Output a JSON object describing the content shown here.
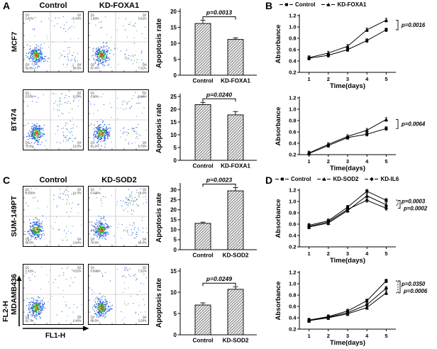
{
  "figure": {
    "panel_letters": {
      "A": "A",
      "B": "B",
      "C": "C",
      "D": "D"
    },
    "axis_labels": {
      "y": "FL2-H",
      "x": "FL1-H"
    }
  },
  "panelA": {
    "col_headers": [
      "Control",
      "KD-FOXA1"
    ],
    "row_labels": [
      "MCF7",
      "BT474"
    ]
  },
  "panelC": {
    "col_headers": [
      "Control",
      "KD-SOD2"
    ],
    "row_labels": [
      "SUM-149PT",
      "MDAMB436"
    ]
  },
  "legendB": [
    {
      "label": "Control",
      "marker": "square"
    },
    {
      "label": "KD-FOXA1",
      "marker": "triangle"
    }
  ],
  "legendD": [
    {
      "label": "Control",
      "marker": "square"
    },
    {
      "label": "KD-SOD2",
      "marker": "triangle"
    },
    {
      "label": "KD-IL6",
      "marker": "diamond"
    }
  ],
  "flow_plots": [
    {
      "panel": "A",
      "row": "MCF7",
      "col": "Control",
      "quadrants": {
        "q1": "1.47%",
        "q2": "5.09%",
        "q3": "82.8%",
        "q4": "10.6%"
      }
    },
    {
      "panel": "A",
      "row": "MCF7",
      "col": "KD-FOXA1",
      "quadrants": {
        "q1": "1.69%",
        "q2": "3.62%",
        "q3": "87.4%",
        "q4": "7.31%"
      }
    },
    {
      "panel": "A",
      "row": "BT474",
      "col": "Control",
      "quadrants": {
        "q1": "2.53%",
        "q2": "9.24%",
        "q3": "75.6%",
        "q4": "12.6%"
      }
    },
    {
      "panel": "A",
      "row": "BT474",
      "col": "KD-FOXA1",
      "quadrants": {
        "q1": "0.98%",
        "q2": "8.06%",
        "q3": "81.2%",
        "q4": "9.76%"
      }
    },
    {
      "panel": "C",
      "row": "SUM-149PT",
      "col": "Control",
      "quadrants": {
        "q1": "0.356%",
        "q2": "10.3%",
        "q3": "86.5%",
        "q4": "2.84%"
      }
    },
    {
      "panel": "C",
      "row": "SUM-149PT",
      "col": "KD-SOD2",
      "quadrants": {
        "q1": "0.425%",
        "q2": "18.6%",
        "q3": "70.6%",
        "q4": "10.4%"
      }
    },
    {
      "panel": "C",
      "row": "MDAMB436",
      "col": "Control",
      "quadrants": {
        "q1": "1.32%",
        "q2": "4.52%",
        "q3": "91.7%",
        "q4": "2.46%"
      }
    },
    {
      "panel": "C",
      "row": "MDAMB436",
      "col": "KD-SOD2",
      "quadrants": {
        "q1": "0.698%",
        "q2": "7.52%",
        "q3": "88.5%",
        "q4": "3.28%"
      }
    }
  ],
  "chart_data": [
    {
      "type": "bar",
      "cell_line": "MCF7",
      "categories": [
        "Control",
        "KD-FOXA1"
      ],
      "values": [
        16.2,
        11.2
      ],
      "errors": [
        1.0,
        0.5
      ],
      "ylabel": "Apoptosis rate",
      "ylim": [
        0,
        20
      ],
      "yticks": [
        0,
        5,
        10,
        15,
        20
      ],
      "p_value": "p=0.0013"
    },
    {
      "type": "bar",
      "cell_line": "BT474",
      "categories": [
        "Control",
        "KD-FOXA1"
      ],
      "values": [
        21.8,
        17.8
      ],
      "errors": [
        0.9,
        1.3
      ],
      "ylabel": "Apoptosis rate",
      "ylim": [
        0,
        25
      ],
      "yticks": [
        0,
        5,
        10,
        15,
        20,
        25
      ],
      "p_value": "p=0.0240"
    },
    {
      "type": "line",
      "cell_line": "MCF7",
      "x": [
        1,
        2,
        3,
        4,
        5
      ],
      "xlabel": "Time(days)",
      "ylabel": "Absorbance",
      "ylim": [
        0.2,
        1.2
      ],
      "yticks": [
        0.2,
        0.4,
        0.6,
        0.8,
        1.0,
        1.2
      ],
      "series": [
        {
          "name": "Control",
          "marker": "square",
          "values": [
            0.45,
            0.5,
            0.6,
            0.76,
            0.95
          ]
        },
        {
          "name": "KD-FOXA1",
          "marker": "triangle",
          "values": [
            0.46,
            0.54,
            0.66,
            0.95,
            1.12
          ]
        }
      ],
      "p_values": [
        {
          "text": "p=0.0016",
          "style": "solid"
        }
      ]
    },
    {
      "type": "line",
      "cell_line": "BT474",
      "x": [
        1,
        2,
        3,
        4,
        5
      ],
      "xlabel": "Time(days)",
      "ylabel": "Absorbance",
      "ylim": [
        0.2,
        1.2
      ],
      "yticks": [
        0.2,
        0.4,
        0.6,
        0.8,
        1.0,
        1.2
      ],
      "series": [
        {
          "name": "Control",
          "marker": "square",
          "values": [
            0.22,
            0.36,
            0.5,
            0.56,
            0.66
          ]
        },
        {
          "name": "KD-FOXA1",
          "marker": "triangle",
          "values": [
            0.23,
            0.38,
            0.52,
            0.63,
            0.82
          ]
        }
      ],
      "p_values": [
        {
          "text": "p=0.0064",
          "style": "solid"
        }
      ]
    },
    {
      "type": "bar",
      "cell_line": "SUM-149PT",
      "categories": [
        "Control",
        "KD-SOD2"
      ],
      "values": [
        13.2,
        29.5
      ],
      "errors": [
        0.6,
        1.6
      ],
      "ylabel": "Apoptosis rate",
      "ylim": [
        0,
        32
      ],
      "yticks": [
        0,
        5,
        10,
        15,
        20,
        25,
        30
      ],
      "p_value": "p=0.0023"
    },
    {
      "type": "bar",
      "cell_line": "MDAMB436",
      "categories": [
        "Control",
        "KD-SOD2"
      ],
      "values": [
        7.0,
        10.7
      ],
      "errors": [
        0.5,
        0.6
      ],
      "ylabel": "Apoptosis rate",
      "ylim": [
        0,
        15
      ],
      "yticks": [
        0,
        5,
        10,
        15
      ],
      "p_value": "p=0.0249"
    },
    {
      "type": "line",
      "cell_line": "SUM-149PT",
      "x": [
        1,
        2,
        3,
        4,
        5
      ],
      "xlabel": "Time(days)",
      "ylabel": "Absorbance",
      "ylim": [
        0.2,
        1.2
      ],
      "yticks": [
        0.2,
        0.4,
        0.6,
        0.8,
        1.0,
        1.2
      ],
      "series": [
        {
          "name": "Control",
          "marker": "square",
          "values": [
            0.58,
            0.66,
            0.9,
            1.18,
            1.02
          ]
        },
        {
          "name": "KD-SOD2",
          "marker": "triangle",
          "values": [
            0.55,
            0.62,
            0.84,
            1.1,
            0.94
          ]
        },
        {
          "name": "KD-IL6",
          "marker": "diamond",
          "values": [
            0.56,
            0.64,
            0.86,
            1.02,
            0.88
          ]
        }
      ],
      "p_values": [
        {
          "text": "p=0.0003",
          "style": "dashed"
        },
        {
          "text": "p=0.0002",
          "style": "solid"
        }
      ]
    },
    {
      "type": "line",
      "cell_line": "MDAMB436",
      "x": [
        1,
        2,
        3,
        4,
        5
      ],
      "xlabel": "Time(days)",
      "ylabel": "Absorbance",
      "ylim": [
        0.2,
        1.2
      ],
      "yticks": [
        0.2,
        0.4,
        0.6,
        0.8,
        1.0,
        1.2
      ],
      "series": [
        {
          "name": "Control",
          "marker": "square",
          "values": [
            0.36,
            0.42,
            0.52,
            0.7,
            1.05
          ]
        },
        {
          "name": "KD-SOD2",
          "marker": "triangle",
          "values": [
            0.35,
            0.4,
            0.47,
            0.58,
            0.84
          ]
        },
        {
          "name": "KD-IL6",
          "marker": "diamond",
          "values": [
            0.35,
            0.41,
            0.49,
            0.63,
            0.92
          ]
        }
      ],
      "p_values": [
        {
          "text": "p=0.0350",
          "style": "dashed"
        },
        {
          "text": "p=0.0006",
          "style": "solid"
        }
      ]
    }
  ]
}
